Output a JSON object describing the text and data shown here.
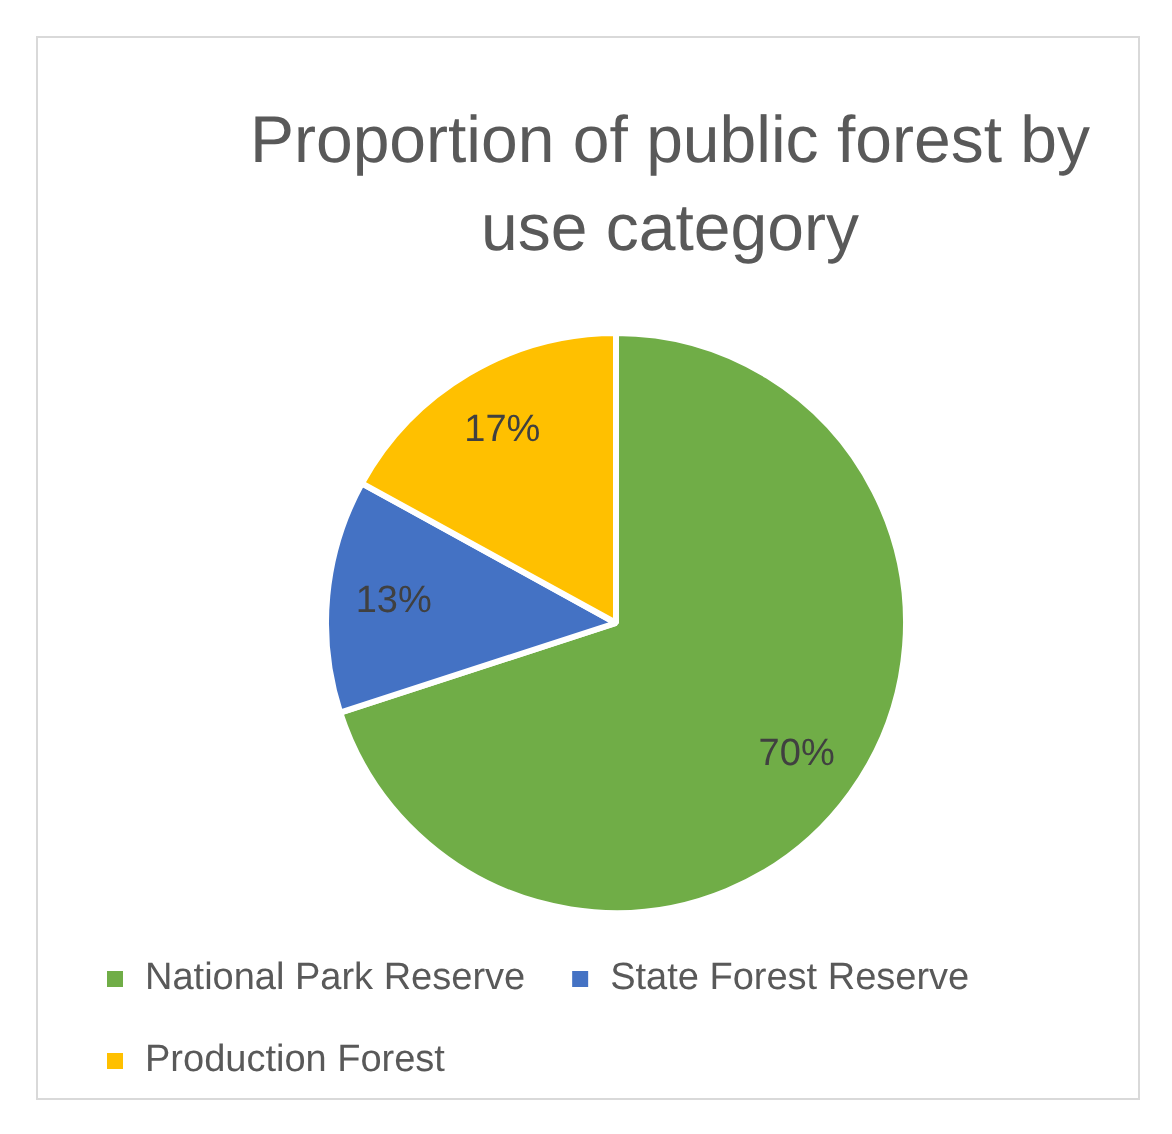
{
  "chart_data": {
    "type": "pie",
    "title": "Proportion of public forest by use category",
    "categories": [
      "National Park Reserve",
      "State Forest Reserve",
      "Production Forest"
    ],
    "values": [
      70,
      13,
      17
    ],
    "colors": [
      "#70ad47",
      "#4472c4",
      "#ffc000"
    ],
    "value_labels": [
      "70%",
      "13%",
      "17%"
    ],
    "legend": "bottom"
  }
}
